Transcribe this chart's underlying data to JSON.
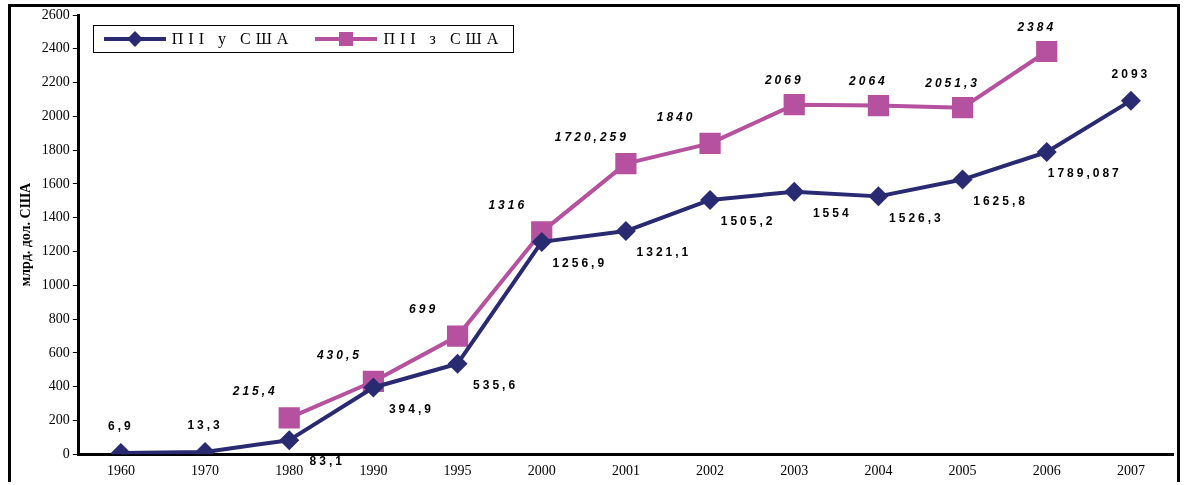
{
  "chart_data": {
    "type": "line",
    "ylabel": "млрд. дол. США",
    "categories": [
      "1960",
      "1970",
      "1980",
      "1990",
      "1995",
      "2000",
      "2001",
      "2002",
      "2003",
      "2004",
      "2005",
      "2006",
      "2007"
    ],
    "series": [
      {
        "name": "ПІІ у США",
        "color": "#2a2a72",
        "marker": "diamond",
        "values": [
          6.9,
          13.3,
          83.1,
          394.9,
          535.6,
          1256.9,
          1321.1,
          1505.2,
          1554,
          1526.3,
          1625.8,
          1789.087,
          2093
        ],
        "value_labels": [
          "6,9",
          "13,3",
          "83,1",
          "394,9",
          "535,6",
          "1256,9",
          "1321,1",
          "1505,2",
          "1554",
          "1526,3",
          "1625,8",
          "1789,087",
          "2093"
        ]
      },
      {
        "name": "ПІІ з США",
        "color": "#b5519e",
        "marker": "square",
        "values": [
          null,
          null,
          215.4,
          430.5,
          699,
          1316,
          1720.259,
          1840,
          2069,
          2064,
          2051.3,
          2384,
          null
        ],
        "value_labels": [
          null,
          null,
          "215,4",
          "430,5",
          "699",
          "1316",
          "1720,259",
          "1840",
          "2069",
          "2064",
          "2051,3",
          "2384",
          null
        ]
      }
    ],
    "ylim": [
      0,
      2600
    ],
    "yticks": [
      0,
      200,
      400,
      600,
      800,
      1000,
      1200,
      1400,
      1600,
      1800,
      2000,
      2200,
      2400,
      2600
    ],
    "grid": false,
    "legend": "top left"
  }
}
